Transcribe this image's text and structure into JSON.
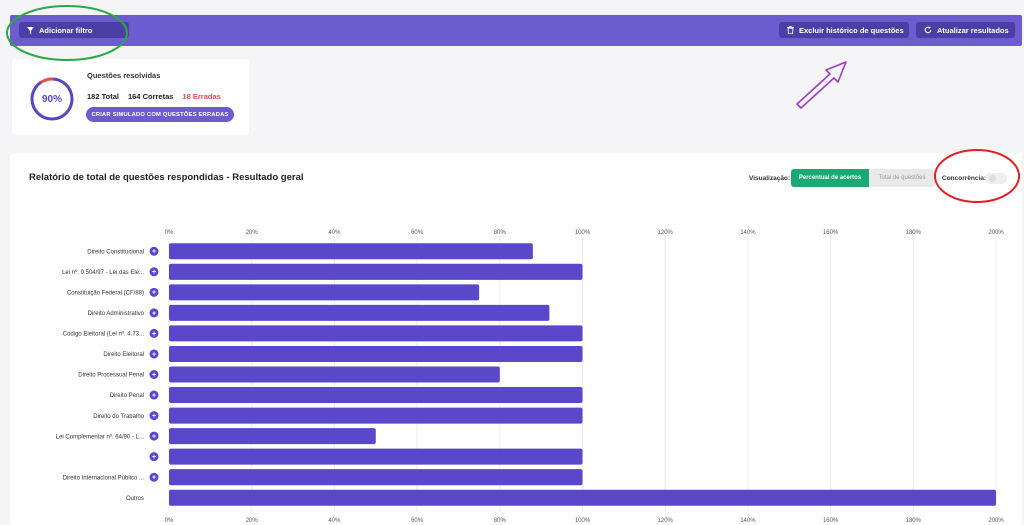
{
  "toolbar": {
    "filter_label": "Adicionar filtro",
    "filter_icon": "filter-icon",
    "clear_label": "Excluir histórico de questões",
    "clear_icon": "trash-icon",
    "refresh_label": "Atualizar resultados",
    "refresh_icon": "refresh-icon",
    "bar_color": "#6c5ccf"
  },
  "summary": {
    "title": "Questões resolvidas",
    "percent_label": "90%",
    "percent_value": 0.9,
    "total": "182 Total",
    "correct": "164 Corretas",
    "wrong": "18 Erradas",
    "button": "CRIAR SIMULADO COM QUESTÕES ERRADAS"
  },
  "report": {
    "title": "Relatório de total de questões respondidas - Resultado geral",
    "visualization_label": "Visualização:",
    "option_active": "Percentual de acertos",
    "option_inactive": "Total de questões",
    "concurrence_label": "Concorrência:",
    "active_color": "#1aa874",
    "bar_color": "#5b47c9"
  },
  "chart_data": {
    "type": "bar",
    "orientation": "horizontal",
    "xlim": [
      0,
      200
    ],
    "ticks": [
      "0%",
      "20%",
      "40%",
      "60%",
      "80%",
      "100%",
      "120%",
      "140%",
      "160%",
      "180%",
      "200%"
    ],
    "tick_values": [
      0,
      20,
      40,
      60,
      80,
      100,
      120,
      140,
      160,
      180,
      200
    ],
    "grid": true,
    "categories": [
      "Direito Constitucional",
      "Lei nº. 9.504/97 - Lei das Ele...",
      "Constituição Federal (CF/88)",
      "Direito Administrativo",
      "Código Eleitoral (Lei nº. 4.73...",
      "Direito Eleitoral",
      "Direito Processual Penal",
      "Direito Penal",
      "Direito do Trabalho",
      "Lei Complementar nº. 64/90 - L...",
      "",
      "Direito Internacional Público ...",
      "Outros"
    ],
    "values": [
      88,
      100,
      75,
      92,
      100,
      100,
      80,
      100,
      100,
      50,
      100,
      100,
      200
    ],
    "expandable": [
      true,
      true,
      true,
      true,
      true,
      true,
      true,
      true,
      true,
      true,
      true,
      true,
      false
    ]
  }
}
